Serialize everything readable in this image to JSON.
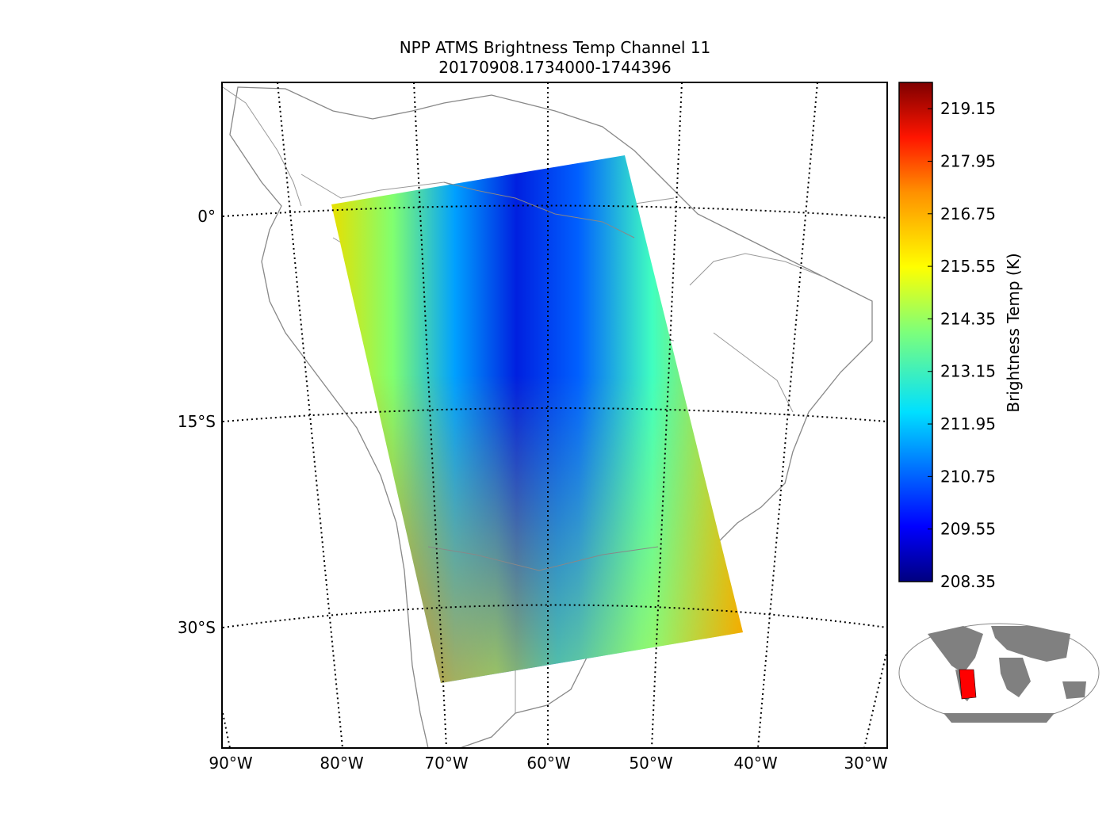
{
  "title": {
    "line1": "NPP ATMS Brightness Temp Channel 11",
    "line2": "20170908.1734000-1744396"
  },
  "map": {
    "lon_labels": [
      "90°W",
      "80°W",
      "70°W",
      "60°W",
      "50°W",
      "40°W",
      "30°W"
    ],
    "lat_labels": [
      "0°",
      "15°S",
      "30°S"
    ],
    "gridline_style": "dotted",
    "coastline_color": "#888888"
  },
  "colorbar": {
    "label": "Brightness Temp (K)",
    "ticks": [
      "219.15",
      "217.95",
      "216.75",
      "215.55",
      "214.35",
      "213.15",
      "211.95",
      "210.75",
      "209.55",
      "208.35"
    ],
    "min": 208.35,
    "max": 219.75,
    "colormap": "jet"
  },
  "inset": {
    "land_color": "#808080",
    "highlight_color": "#ff0000"
  }
}
